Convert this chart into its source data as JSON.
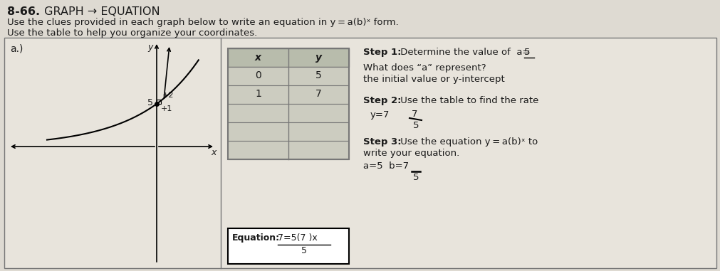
{
  "title_bold": "8-66.",
  "title_rest": " GRAPH → EQUATION",
  "subtitle1": "Use the clues provided in each graph below to write an equation in y = a(b)ˣ form.",
  "subtitle2": "Use the table to help you organize your coordinates.",
  "label_a": "a.)",
  "graph_y_label": "y",
  "graph_x_label": "x",
  "table_rows": [
    [
      "0",
      "5"
    ],
    [
      "1",
      "7"
    ],
    [
      "",
      ""
    ],
    [
      "",
      ""
    ],
    [
      "",
      ""
    ]
  ],
  "step1_bold": "Step 1:",
  "step1_rest": " Determine the value of  a= ",
  "step1_answer": "5",
  "what_bold": "What does “a” represent?",
  "what_answer": "the initial value or y-intercept",
  "step2_bold": "Step 2:",
  "step2_rest": " Use the table to find the rate",
  "step2_y": "y=7",
  "step2_frac_num": "7",
  "step2_frac_den": "5",
  "step3_bold": "Step 3:",
  "step3_rest": " Use the equation y = a(b)ˣ to",
  "step3_line2": "write your equation.",
  "ans_line": "a=5  b=7",
  "ans_frac_den": "5",
  "eq_label": "Equation:",
  "eq_numerator": "7=5(7 )x",
  "eq_denominator": "5",
  "bg_color": "#dedad2",
  "box_bg": "#e8e4dc",
  "table_header_bg": "#b8bcac",
  "table_row_bg": "#ccccc0",
  "eq_box_bg": "#ffffff",
  "border_color": "#777777",
  "text_color": "#1a1a1a"
}
